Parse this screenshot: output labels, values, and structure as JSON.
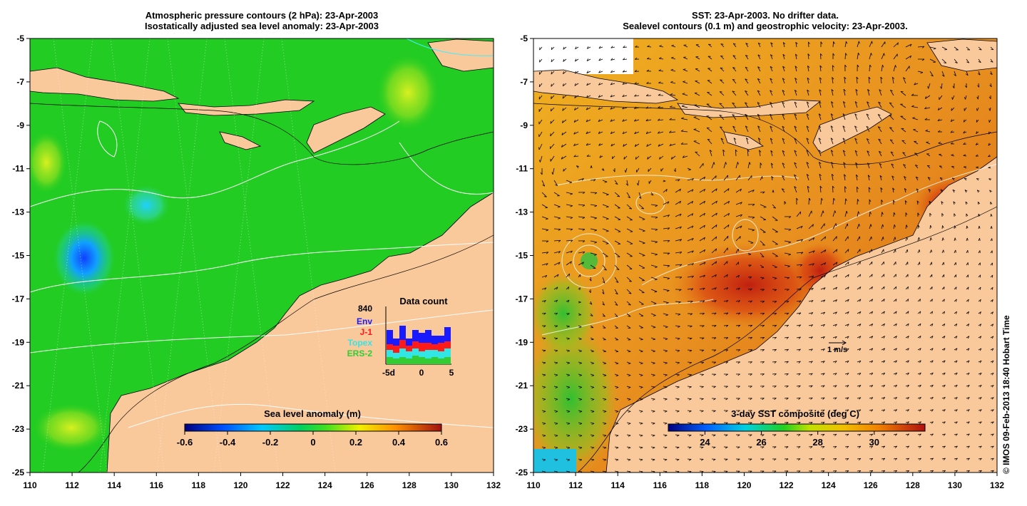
{
  "left_panel": {
    "title_line1": "Atmospheric pressure contours (2 hPa): 23-Apr-2003",
    "title_line2": "Isostatically adjusted sea level anomaly: 23-Apr-2003",
    "x_ticks": [
      "110",
      "112",
      "114",
      "116",
      "118",
      "120",
      "122",
      "124",
      "126",
      "128",
      "130",
      "132"
    ],
    "y_ticks": [
      "-5",
      "-7",
      "-9",
      "-11",
      "-13",
      "-15",
      "-17",
      "-19",
      "-21",
      "-23",
      "-25"
    ],
    "colorbar": {
      "title": "Sea level anomaly (m)",
      "tick_labels": [
        "-0.6",
        "-0.4",
        "-0.2",
        "0",
        "0.2",
        "0.4",
        "0.6"
      ]
    },
    "data_count": {
      "title": "Data count",
      "total": "840",
      "legend": [
        {
          "label": "Env",
          "color": "#1a1aff"
        },
        {
          "label": "J-1",
          "color": "#ff1a1a"
        },
        {
          "label": "Topex",
          "color": "#33e6e6"
        },
        {
          "label": "ERS-2",
          "color": "#33cc33"
        }
      ],
      "x_labels": [
        "-5d",
        "0",
        "5"
      ]
    }
  },
  "right_panel": {
    "title_line1": "SST: 23-Apr-2003. No drifter data.",
    "title_line2": "Sealevel contours (0.1 m) and geostrophic velocity: 23-Apr-2003.",
    "x_ticks": [
      "110",
      "112",
      "114",
      "116",
      "118",
      "120",
      "122",
      "124",
      "126",
      "128",
      "130",
      "132"
    ],
    "y_ticks": [
      "-5",
      "-7",
      "-9",
      "-11",
      "-13",
      "-15",
      "-17",
      "-19",
      "-21",
      "-23",
      "-25"
    ],
    "colorbar": {
      "title": "3-day SST composite (deg C)",
      "tick_labels": [
        "24",
        "26",
        "28",
        "30"
      ]
    },
    "velocity_scale_label": "1 m/s"
  },
  "credit": "© IMOS 09-Feb-2013 18:40 Hobart Time",
  "colors": {
    "land": "#f9c89b",
    "sla_ocean": "#22cc22",
    "sst_ocean": "#f0a020"
  }
}
